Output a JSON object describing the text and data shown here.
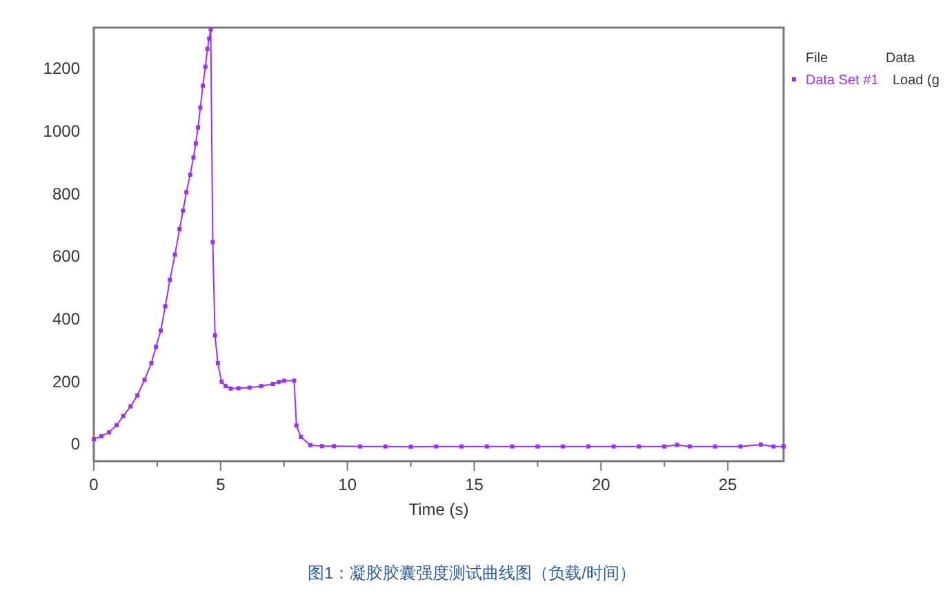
{
  "chart_data": {
    "type": "line",
    "xlabel": "Time (s)",
    "legend_title": "File",
    "legend": "top right",
    "marker": "square",
    "line_style": "solid",
    "grid": false,
    "xlim": [
      0,
      27.2
    ],
    "xticks": [
      0,
      {
        "value": 2.5,
        "label": null
      },
      5,
      {
        "value": 7.5,
        "label": null
      },
      10,
      {
        "value": 12.5,
        "label": null
      },
      15,
      {
        "value": 17.5,
        "label": null
      },
      20,
      {
        "value": 22.5,
        "label": null
      },
      25
    ],
    "ylim": [
      -55,
      1330
    ],
    "yticks": [
      0,
      200,
      400,
      600,
      800,
      1000,
      1200
    ],
    "x": [
      0,
      0.3,
      0.6,
      0.9,
      1.16,
      1.45,
      1.72,
      2.0,
      2.27,
      2.45,
      2.64,
      2.82,
      3.0,
      3.2,
      3.38,
      3.52,
      3.65,
      3.8,
      3.93,
      4.02,
      4.11,
      4.2,
      4.3,
      4.4,
      4.48,
      4.55,
      4.61,
      4.69,
      4.78,
      4.89,
      5.04,
      5.2,
      5.4,
      5.7,
      6.14,
      6.6,
      7.06,
      7.3,
      7.5,
      7.9,
      7.99,
      8.17,
      8.54,
      9.0,
      9.47,
      10.5,
      11.5,
      12.5,
      13.5,
      14.5,
      15.5,
      16.5,
      17.5,
      18.5,
      19.5,
      20.5,
      21.5,
      22.5,
      23.0,
      23.5,
      24.5,
      25.5,
      26.3,
      26.8,
      27.2
    ],
    "series": [
      {
        "name": "Data Set #1",
        "color": "#9933ee",
        "values": [
          15,
          25,
          37,
          60,
          89,
          120,
          155,
          205,
          258,
          310,
          362,
          440,
          524,
          605,
          686,
          745,
          804,
          860,
          915,
          960,
          1011,
          1075,
          1144,
          1205,
          1262,
          1295,
          1324,
          645,
          347,
          258,
          199,
          185,
          177,
          178,
          180,
          185,
          192,
          198,
          202,
          202,
          59,
          22,
          -4,
          -7,
          -7,
          -8,
          -8,
          -9,
          -8,
          -8,
          -8,
          -8,
          -8,
          -8,
          -8,
          -8,
          -8,
          -8,
          -3,
          -8,
          -8,
          -8,
          -2,
          -8,
          -8
        ]
      }
    ],
    "annotations": [
      "Data",
      "Load (g",
      "图1：凝胶胶囊强度测试曲线图（负载/时间）"
    ]
  }
}
